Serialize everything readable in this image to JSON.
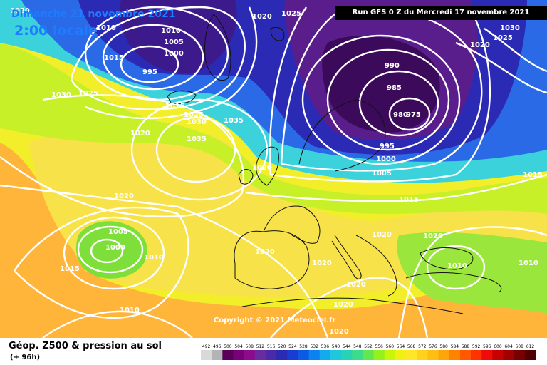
{
  "header": {
    "date": "Dimanche 21 novembre 2021",
    "time": "2:00 locale",
    "run": "Run GFS 0 Z du Mercredi 17 novembre 2021"
  },
  "copyright": "Copyright © 2021 Meteociel.fr",
  "legend": {
    "title": "Géop. Z500 & pression au sol",
    "subtitle": "(+ 96h)",
    "levels": [
      "492",
      "496",
      "500",
      "504",
      "508",
      "512",
      "516",
      "520",
      "524",
      "528",
      "532",
      "536",
      "540",
      "544",
      "548",
      "552",
      "556",
      "560",
      "564",
      "568",
      "572",
      "576",
      "580",
      "584",
      "588",
      "592",
      "596",
      "600",
      "604",
      "608",
      "612"
    ],
    "colors": [
      "#d9d9d9",
      "#b4b4b4",
      "#5a005a",
      "#780078",
      "#8c0a8c",
      "#6a2aa0",
      "#4a2aaa",
      "#2a2ab4",
      "#1a3cd2",
      "#0a5ae6",
      "#0a82f0",
      "#14aaf0",
      "#1ec8dc",
      "#28d2b4",
      "#3cdc8c",
      "#64e650",
      "#96f01e",
      "#c8f50a",
      "#f0f014",
      "#ffe628",
      "#ffd21e",
      "#ffbe14",
      "#ffa50a",
      "#ff8200",
      "#ff5a00",
      "#ff3200",
      "#f00a0a",
      "#c80000",
      "#a00000",
      "#780000",
      "#500000"
    ]
  },
  "map": {
    "colors": {
      "green": "#7ede3a",
      "yellow_green": "#c8f028",
      "yellow": "#f2ee2a",
      "light_yellow": "#f7e24a",
      "orange": "#ffb43a",
      "cyan": "#3cd2dc",
      "blue": "#2a6ae6",
      "dark_blue": "#2a2ab4",
      "purple": "#5a1e8c",
      "dark_purple": "#3c0a5a"
    },
    "isobar_labels": [
      "1020",
      "1010",
      "1010",
      "1005",
      "1000",
      "995",
      "1015",
      "1025",
      "1030",
      "1020",
      "1025",
      "1030",
      "1025",
      "1020",
      "990",
      "985",
      "980",
      "975",
      "995",
      "1000",
      "1005",
      "1015",
      "1015",
      "1025",
      "1030",
      "1035",
      "1020",
      "1035",
      "1020",
      "1015",
      "1020",
      "1020",
      "1020",
      "1020",
      "1020",
      "1020",
      "1010",
      "1010",
      "1005",
      "1000",
      "1010",
      "1015",
      "1010",
      "1020",
      "1020"
    ]
  }
}
